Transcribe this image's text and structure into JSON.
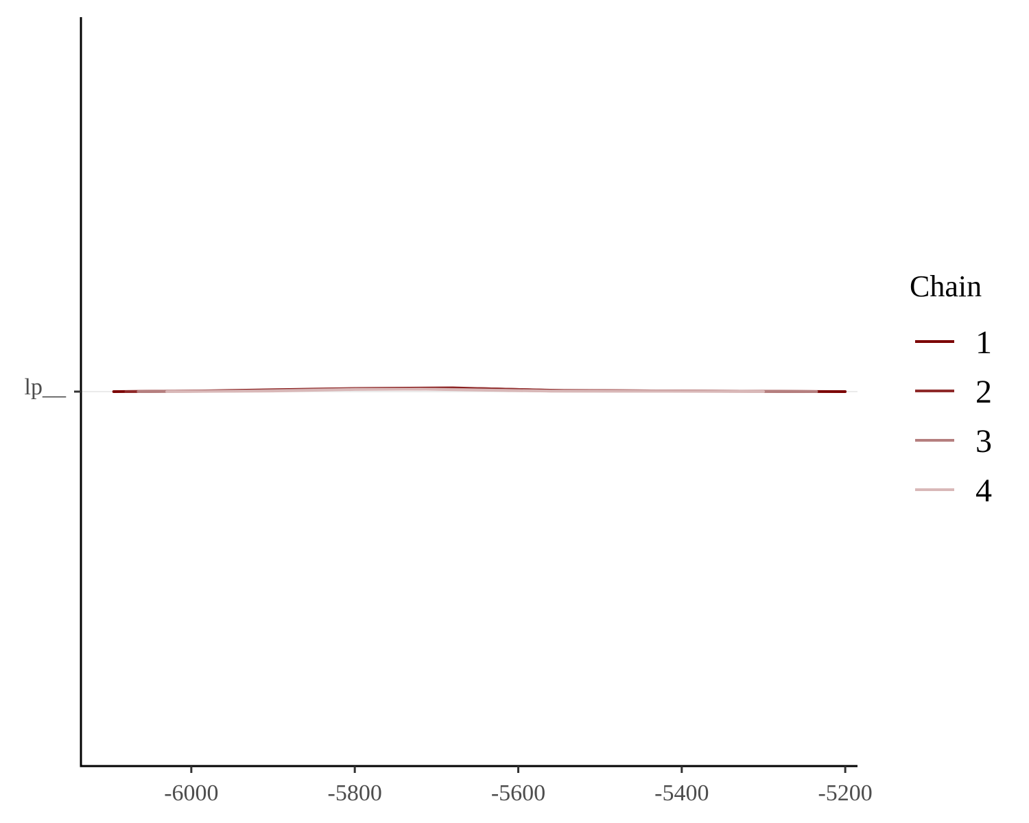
{
  "chart_data": {
    "type": "line",
    "title": "",
    "xlabel": "",
    "ylabel": "",
    "xlim": [
      -6135,
      -5185
    ],
    "x_ticks": [
      -6000,
      -5800,
      -5600,
      -5400,
      -5200
    ],
    "x_tick_labels": [
      "-6000",
      "-5800",
      "-5600",
      "-5400",
      "-5200"
    ],
    "y_categories": [
      "lp__"
    ],
    "grid": "horizontal at category only",
    "legend": {
      "title": "Chain",
      "placement": "right",
      "entries": [
        "1",
        "2",
        "3",
        "4"
      ]
    },
    "series": [
      {
        "name": "1",
        "color": "#7b0000",
        "x": [
          -6095,
          -5200
        ],
        "density": [
          [
            -6095,
            0.0
          ],
          [
            -5990,
            0.01
          ],
          [
            -5800,
            0.05
          ],
          [
            -5680,
            0.06
          ],
          [
            -5560,
            0.02
          ],
          [
            -5420,
            0.01
          ],
          [
            -5300,
            0.004
          ],
          [
            -5200,
            0.0
          ]
        ]
      },
      {
        "name": "2",
        "color": "#8f2a2a",
        "x": [
          -6080,
          -5235
        ],
        "density": [
          [
            -6080,
            0.0
          ],
          [
            -5960,
            0.01
          ],
          [
            -5800,
            0.045
          ],
          [
            -5650,
            0.05
          ],
          [
            -5540,
            0.015
          ],
          [
            -5400,
            0.01
          ],
          [
            -5300,
            0.004
          ],
          [
            -5235,
            0.0
          ]
        ]
      },
      {
        "name": "3",
        "color": "#b57f7f",
        "x": [
          -6065,
          -5235
        ],
        "density": [
          [
            -6065,
            0.0
          ],
          [
            -5950,
            0.008
          ],
          [
            -5800,
            0.04
          ],
          [
            -5700,
            0.04
          ],
          [
            -5560,
            0.01
          ],
          [
            -5420,
            0.008
          ],
          [
            -5300,
            0.003
          ],
          [
            -5235,
            0.0
          ]
        ]
      },
      {
        "name": "4",
        "color": "#d9b8b8",
        "x": [
          -6030,
          -5300
        ],
        "density": [
          [
            -6030,
            0.0
          ],
          [
            -5900,
            0.01
          ],
          [
            -5800,
            0.035
          ],
          [
            -5720,
            0.04
          ],
          [
            -5560,
            0.008
          ],
          [
            -5420,
            0.006
          ],
          [
            -5300,
            0.0
          ]
        ]
      }
    ]
  }
}
